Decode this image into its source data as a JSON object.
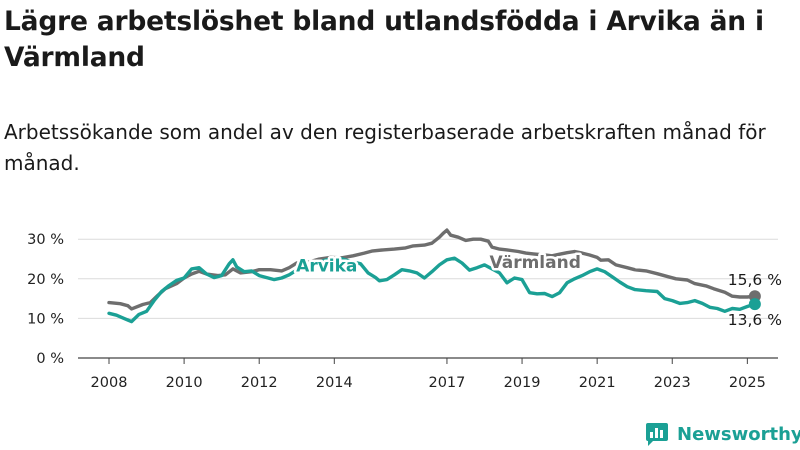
{
  "title": "Lägre arbetslöshet bland utlandsfödda i Arvika än i Värmland",
  "subtitle": "Arbetssökande som andel av den registerbaserade arbetskraften månad för månad.",
  "brand": {
    "name": "Newsworthy",
    "icon": "newsworthy-logo-icon"
  },
  "chart_data": {
    "type": "line",
    "ylim": [
      0,
      32
    ],
    "xlim": [
      2008.0,
      2025.75
    ],
    "y_ticks": [
      0,
      10,
      20,
      30
    ],
    "y_tick_labels": [
      "0 %",
      "10 %",
      "20 %",
      "30 %"
    ],
    "x_ticks": [
      2008,
      2010,
      2012,
      2014,
      2017,
      2019,
      2021,
      2023,
      2025
    ],
    "x_tick_labels": [
      "2008",
      "2010",
      "2012",
      "2014",
      "2017",
      "2019",
      "2021",
      "2023",
      "2025"
    ],
    "grid": true,
    "series": [
      {
        "name": "Värmland",
        "color": "#6e6e6e",
        "end_label": "15,6 %",
        "points": [
          [
            2008.0,
            14.0
          ],
          [
            2008.3,
            13.7
          ],
          [
            2008.5,
            13.2
          ],
          [
            2008.6,
            12.4
          ],
          [
            2008.9,
            13.5
          ],
          [
            2009.1,
            14.0
          ],
          [
            2009.3,
            15.8
          ],
          [
            2009.5,
            17.5
          ],
          [
            2009.8,
            18.8
          ],
          [
            2010.0,
            20.2
          ],
          [
            2010.2,
            21.2
          ],
          [
            2010.4,
            21.9
          ],
          [
            2010.6,
            21.2
          ],
          [
            2010.9,
            20.8
          ],
          [
            2011.1,
            21.0
          ],
          [
            2011.3,
            22.5
          ],
          [
            2011.5,
            21.5
          ],
          [
            2011.8,
            21.8
          ],
          [
            2012.0,
            22.3
          ],
          [
            2012.3,
            22.3
          ],
          [
            2012.6,
            22.0
          ],
          [
            2012.8,
            22.8
          ],
          [
            2013.0,
            24.0
          ],
          [
            2013.3,
            24.2
          ],
          [
            2013.6,
            25.0
          ],
          [
            2013.9,
            25.4
          ],
          [
            2014.2,
            25.3
          ],
          [
            2014.5,
            25.8
          ],
          [
            2014.8,
            26.5
          ],
          [
            2015.0,
            27.0
          ],
          [
            2015.3,
            27.3
          ],
          [
            2015.6,
            27.5
          ],
          [
            2015.9,
            27.8
          ],
          [
            2016.1,
            28.3
          ],
          [
            2016.4,
            28.5
          ],
          [
            2016.6,
            29.0
          ],
          [
            2016.8,
            30.5
          ],
          [
            2016.9,
            31.5
          ],
          [
            2017.0,
            32.3
          ],
          [
            2017.1,
            31.0
          ],
          [
            2017.3,
            30.5
          ],
          [
            2017.5,
            29.7
          ],
          [
            2017.7,
            30.0
          ],
          [
            2017.9,
            30.0
          ],
          [
            2018.1,
            29.5
          ],
          [
            2018.2,
            28.0
          ],
          [
            2018.4,
            27.5
          ],
          [
            2018.6,
            27.3
          ],
          [
            2018.9,
            26.9
          ],
          [
            2019.1,
            26.5
          ],
          [
            2019.3,
            26.3
          ],
          [
            2019.6,
            26.0
          ],
          [
            2019.8,
            25.8
          ],
          [
            2020.0,
            26.2
          ],
          [
            2020.2,
            26.6
          ],
          [
            2020.4,
            26.9
          ],
          [
            2020.6,
            26.5
          ],
          [
            2020.8,
            26.0
          ],
          [
            2021.0,
            25.4
          ],
          [
            2021.1,
            24.7
          ],
          [
            2021.3,
            24.8
          ],
          [
            2021.5,
            23.5
          ],
          [
            2021.8,
            22.8
          ],
          [
            2022.0,
            22.3
          ],
          [
            2022.3,
            22.0
          ],
          [
            2022.6,
            21.3
          ],
          [
            2022.9,
            20.5
          ],
          [
            2023.1,
            20.0
          ],
          [
            2023.4,
            19.7
          ],
          [
            2023.6,
            18.8
          ],
          [
            2023.9,
            18.2
          ],
          [
            2024.1,
            17.5
          ],
          [
            2024.4,
            16.6
          ],
          [
            2024.6,
            15.6
          ],
          [
            2024.8,
            15.4
          ],
          [
            2025.0,
            15.4
          ],
          [
            2025.2,
            15.6
          ]
        ]
      },
      {
        "name": "Arvika",
        "color": "#1ba095",
        "end_label": "13,6 %",
        "points": [
          [
            2008.0,
            11.3
          ],
          [
            2008.2,
            10.8
          ],
          [
            2008.4,
            10.0
          ],
          [
            2008.5,
            9.6
          ],
          [
            2008.6,
            9.2
          ],
          [
            2008.8,
            11.0
          ],
          [
            2009.0,
            11.8
          ],
          [
            2009.2,
            14.5
          ],
          [
            2009.4,
            16.8
          ],
          [
            2009.6,
            18.3
          ],
          [
            2009.8,
            19.6
          ],
          [
            2010.0,
            20.2
          ],
          [
            2010.2,
            22.5
          ],
          [
            2010.4,
            22.8
          ],
          [
            2010.6,
            21.2
          ],
          [
            2010.8,
            20.3
          ],
          [
            2011.0,
            20.8
          ],
          [
            2011.2,
            23.8
          ],
          [
            2011.3,
            24.8
          ],
          [
            2011.4,
            23.0
          ],
          [
            2011.6,
            21.8
          ],
          [
            2011.8,
            22.0
          ],
          [
            2012.0,
            20.8
          ],
          [
            2012.2,
            20.3
          ],
          [
            2012.4,
            19.8
          ],
          [
            2012.6,
            20.2
          ],
          [
            2012.8,
            21.0
          ],
          [
            2013.0,
            22.2
          ],
          [
            2013.2,
            23.5
          ],
          [
            2013.5,
            24.0
          ],
          [
            2013.8,
            24.8
          ],
          [
            2014.1,
            25.3
          ],
          [
            2014.4,
            24.5
          ],
          [
            2014.7,
            23.8
          ],
          [
            2014.9,
            21.5
          ],
          [
            2015.1,
            20.3
          ],
          [
            2015.2,
            19.5
          ],
          [
            2015.4,
            19.8
          ],
          [
            2015.6,
            21.0
          ],
          [
            2015.8,
            22.3
          ],
          [
            2016.0,
            22.0
          ],
          [
            2016.2,
            21.5
          ],
          [
            2016.4,
            20.2
          ],
          [
            2016.6,
            21.8
          ],
          [
            2016.8,
            23.5
          ],
          [
            2017.0,
            24.8
          ],
          [
            2017.2,
            25.2
          ],
          [
            2017.4,
            24.0
          ],
          [
            2017.6,
            22.2
          ],
          [
            2017.8,
            22.8
          ],
          [
            2018.0,
            23.5
          ],
          [
            2018.2,
            22.5
          ],
          [
            2018.4,
            21.5
          ],
          [
            2018.6,
            19.0
          ],
          [
            2018.8,
            20.2
          ],
          [
            2019.0,
            19.8
          ],
          [
            2019.2,
            16.5
          ],
          [
            2019.4,
            16.2
          ],
          [
            2019.6,
            16.3
          ],
          [
            2019.8,
            15.5
          ],
          [
            2020.0,
            16.5
          ],
          [
            2020.2,
            19.0
          ],
          [
            2020.4,
            20.0
          ],
          [
            2020.6,
            20.8
          ],
          [
            2020.8,
            21.8
          ],
          [
            2021.0,
            22.5
          ],
          [
            2021.2,
            21.8
          ],
          [
            2021.4,
            20.5
          ],
          [
            2021.6,
            19.2
          ],
          [
            2021.8,
            18.0
          ],
          [
            2022.0,
            17.3
          ],
          [
            2022.3,
            17.0
          ],
          [
            2022.6,
            16.8
          ],
          [
            2022.8,
            15.0
          ],
          [
            2023.0,
            14.5
          ],
          [
            2023.2,
            13.8
          ],
          [
            2023.4,
            14.0
          ],
          [
            2023.6,
            14.5
          ],
          [
            2023.8,
            13.8
          ],
          [
            2024.0,
            12.8
          ],
          [
            2024.2,
            12.5
          ],
          [
            2024.4,
            11.8
          ],
          [
            2024.6,
            12.5
          ],
          [
            2024.8,
            12.3
          ],
          [
            2025.0,
            13.0
          ],
          [
            2025.2,
            13.6
          ]
        ]
      }
    ]
  }
}
